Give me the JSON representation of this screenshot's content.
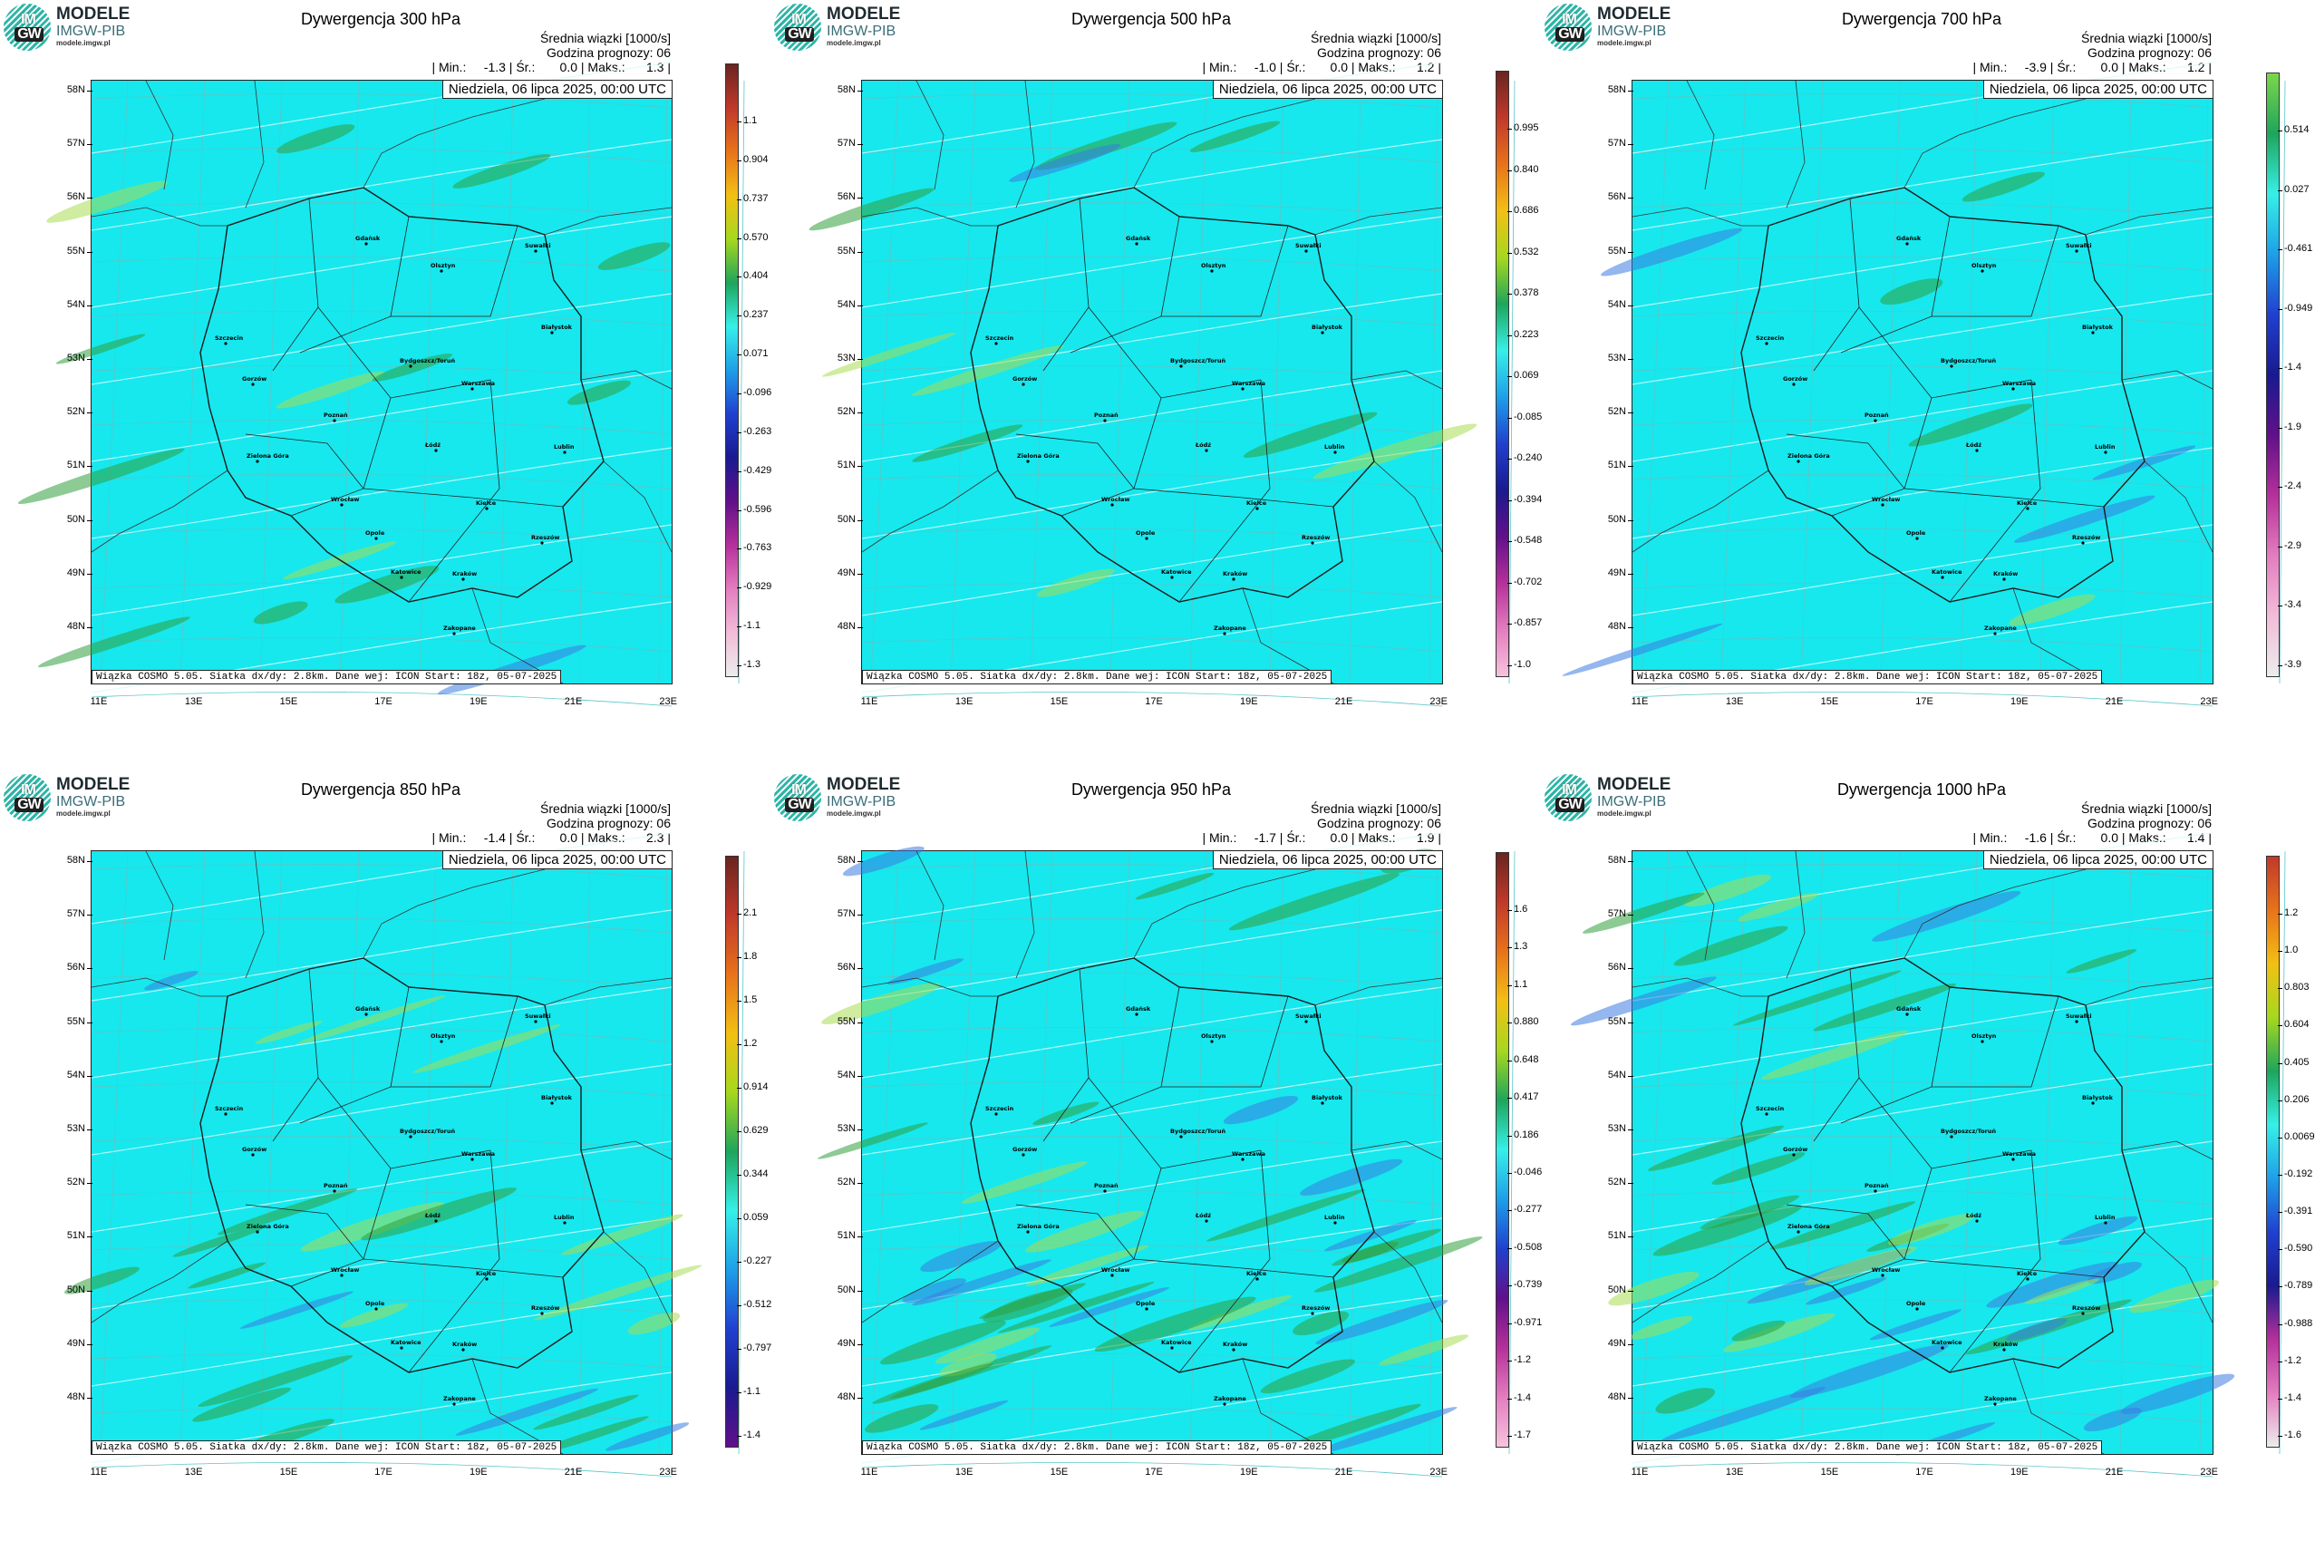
{
  "logo": {
    "im": "IM",
    "gw": "GW",
    "modele": "MODELE",
    "imgw": "IMGW-PIB",
    "url": "modele.imgw.pl"
  },
  "common": {
    "subtitle1": "Średnia wiązki [1000/s]",
    "subtitle2": "Godzina prognozy: 06",
    "date": "Niedziela, 06 lipca 2025, 00:00 UTC",
    "footer": "Wiązka COSMO 5.05. Siatka dx/dy: 2.8km. Dane wej: ICON Start: 18z, 05-07-2025",
    "lat_labels": [
      "58N",
      "57N",
      "56N",
      "55N",
      "54N",
      "53N",
      "52N",
      "51N",
      "50N",
      "49N",
      "48N"
    ],
    "lon_labels": [
      "11E",
      "13E",
      "15E",
      "17E",
      "19E",
      "21E",
      "23E"
    ],
    "cities": [
      "Gdańsk",
      "Olsztyn",
      "Suwałki",
      "Szczecin",
      "Bydgoszcz/Toruń",
      "Białystok",
      "Gorzów",
      "Poznań",
      "Warszawa",
      "Zielona Góra",
      "Łódź",
      "Lublin",
      "Wrocław",
      "Kielce",
      "Opole",
      "Rzeszów",
      "Katowice",
      "Kraków",
      "Zakopane"
    ],
    "colors": {
      "background": "#16e8ee",
      "border": "#1a1a1a"
    }
  },
  "panels": [
    {
      "title": "Dywergencja 300 hPa",
      "stats": "| Min.:     -1.3 | Śr.:       0.0 | Maks.:      1.3 |",
      "ticks": [
        "1.1",
        "0.904",
        "0.737",
        "0.570",
        "0.404",
        "0.237",
        "0.071",
        "-0.096",
        "-0.263",
        "-0.429",
        "-0.596",
        "-0.763",
        "-0.929",
        "-1.1",
        "-1.3"
      ]
    },
    {
      "title": "Dywergencja 500 hPa",
      "stats": "| Min.:     -1.0 | Śr.:       0.0 | Maks.:      1.2 |",
      "ticks": [
        "0.995",
        "0.840",
        "0.686",
        "0.532",
        "0.378",
        "0.223",
        "0.069",
        "-0.085",
        "-0.240",
        "-0.394",
        "-0.548",
        "-0.702",
        "-0.857",
        "-1.0"
      ]
    },
    {
      "title": "Dywergencja 700 hPa",
      "stats": "| Min.:     -3.9 | Śr.:       0.0 | Maks.:      1.2 |",
      "ticks": [
        "0.514",
        "0.027",
        "-0.461",
        "-0.949",
        "-1.4",
        "-1.9",
        "-2.4",
        "-2.9",
        "-3.4",
        "-3.9"
      ]
    },
    {
      "title": "Dywergencja 850 hPa",
      "stats": "| Min.:     -1.4 | Śr.:       0.0 | Maks.:      2.3 |",
      "ticks": [
        "2.1",
        "1.8",
        "1.5",
        "1.2",
        "0.914",
        "0.629",
        "0.344",
        "0.059",
        "-0.227",
        "-0.512",
        "-0.797",
        "-1.1",
        "-1.4"
      ]
    },
    {
      "title": "Dywergencja 950 hPa",
      "stats": "| Min.:     -1.7 | Śr.:       0.0 | Maks.:      1.9 |",
      "ticks": [
        "1.6",
        "1.3",
        "1.1",
        "0.880",
        "0.648",
        "0.417",
        "0.186",
        "-0.046",
        "-0.277",
        "-0.508",
        "-0.739",
        "-0.971",
        "-1.2",
        "-1.4",
        "-1.7"
      ]
    },
    {
      "title": "Dywergencja 1000 hPa",
      "stats": "| Min.:     -1.6 | Śr.:       0.0 | Maks.:      1.4 |",
      "ticks": [
        "1.2",
        "1.0",
        "0.803",
        "0.604",
        "0.405",
        "0.206",
        "0.0069",
        "-0.192",
        "-0.391",
        "-0.590",
        "-0.789",
        "-0.988",
        "-1.2",
        "-1.4",
        "-1.6"
      ]
    }
  ]
}
